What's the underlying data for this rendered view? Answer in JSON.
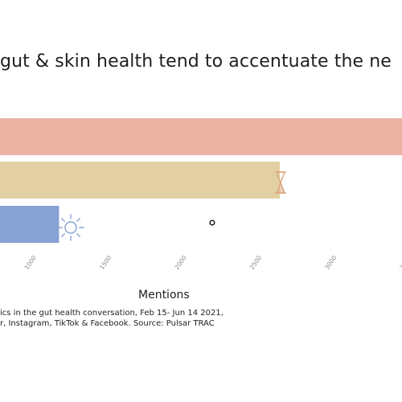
{
  "chart_data": {
    "type": "bar",
    "orientation": "horizontal",
    "title": "gut & skin health tend to accentuate the ne",
    "xlabel": "Mentions",
    "xticks": [
      1000,
      1500,
      2000,
      2500,
      3000,
      3500
    ],
    "grid": false,
    "bars": [
      {
        "value": 4000,
        "color": "#ebb2a4",
        "icon": "none"
      },
      {
        "value": 2650,
        "color": "#e2d0a4",
        "icon": "hourglass-icon"
      },
      {
        "value": 1180,
        "color": "#86a1d2",
        "icon": "sun-icon"
      }
    ],
    "marker": {
      "x": 2200,
      "icon": "circle-marker-icon"
    }
  },
  "caption": {
    "line1": "ics in the gut health conversation, Feb 15- Jun 14 2021,",
    "line2": "r, Instagram, TikTok & Facebook. Source: Pulsar TRAC"
  },
  "colors": {
    "hourglass": "#d9a77f",
    "sun": "#86a1d2",
    "tick": "#888888"
  }
}
